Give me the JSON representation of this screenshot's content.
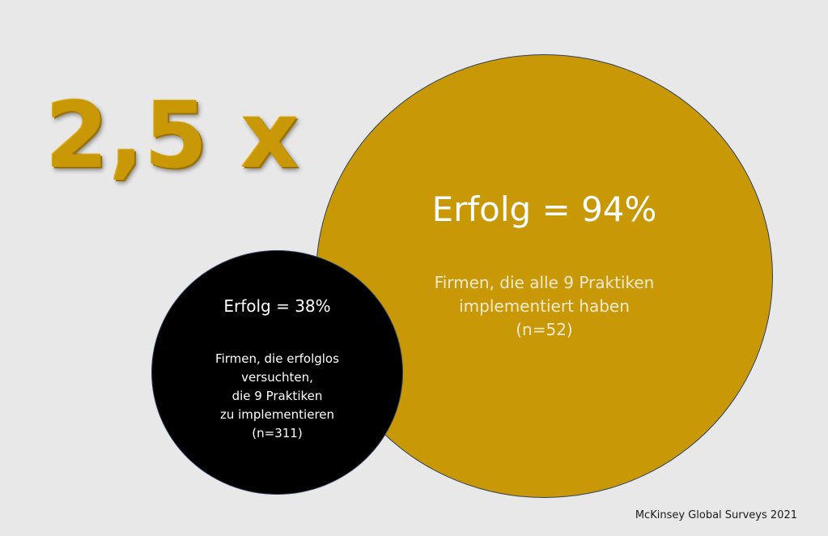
{
  "headline": "2,5 x",
  "success_circle": {
    "heading": "Erfolg = 94%",
    "description_lines": [
      "Firmen, die alle 9 Praktiken",
      "implementiert haben",
      "(n=52)"
    ],
    "color": "#c99806",
    "success_percent": 94,
    "n": 52
  },
  "failure_circle": {
    "heading": "Erfolg = 38%",
    "description_lines": [
      "Firmen, die erfolglos",
      "versuchten,",
      "die 9 Praktiken",
      "zu implementieren",
      "(n=311)"
    ],
    "color": "#000000",
    "success_percent": 38,
    "n": 311
  },
  "source": "McKinsey Global Surveys 2021",
  "colors": {
    "background": "#e8e8e8",
    "accent_gold": "#c99806",
    "circle_outline": "#2f4160"
  }
}
